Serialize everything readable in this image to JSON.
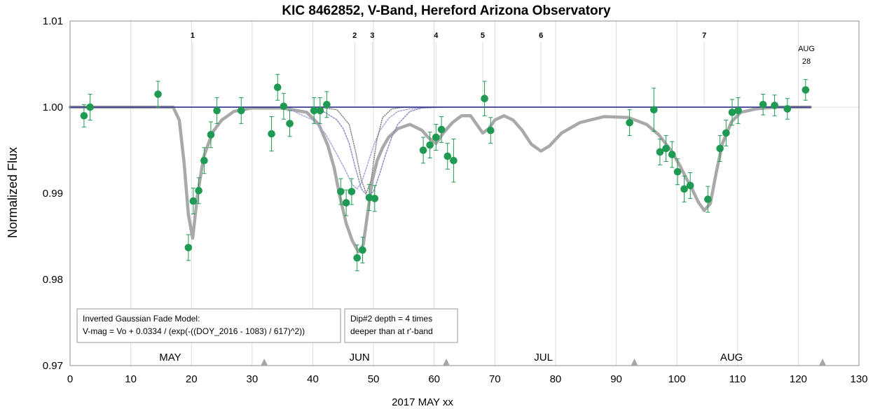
{
  "chart_data": {
    "type": "scatter",
    "title": "KIC 8462852, V-Band, Hereford Arizona Observatory",
    "xlabel": "2017 MAY xx",
    "ylabel": "Normalized  Flux",
    "xlim": [
      0,
      130
    ],
    "ylim": [
      0.97,
      1.01
    ],
    "x_ticks": [
      "0",
      "10",
      "20",
      "30",
      "40",
      "50",
      "60",
      "70",
      "80",
      "90",
      "100",
      "110",
      "120",
      "130"
    ],
    "y_ticks": [
      "0.97",
      "0.98",
      "0.99",
      "1.00",
      "1.01"
    ],
    "grid": "vertical",
    "month_labels": [
      {
        "text": "MAY",
        "x": 16.5
      },
      {
        "text": "JUN",
        "x": 47.7
      },
      {
        "text": "JUL",
        "x": 78.0
      },
      {
        "text": "AUG",
        "x": 109.0
      }
    ],
    "month_markers": [
      32,
      62,
      93,
      124
    ],
    "dip_labels": [
      {
        "text": "1",
        "x": 20.2
      },
      {
        "text": "2",
        "x": 46.9
      },
      {
        "text": "3",
        "x": 49.8
      },
      {
        "text": "4",
        "x": 60.3
      },
      {
        "text": "5",
        "x": 68.0
      },
      {
        "text": "6",
        "x": 77.6
      },
      {
        "text": "7",
        "x": 104.5
      }
    ],
    "aug_label": [
      "AUG",
      "28"
    ],
    "aug_label_x": 121.0,
    "annotations": [
      [
        "Inverted Gaussian Fade Model:",
        "V-mag = Vo + 0.0334  / (exp(-((DOY_2016 - 1083)  / 617)^2))"
      ],
      [
        "Dip#2 depth = 4 times",
        "deeper than at r'-band"
      ]
    ],
    "series": [
      {
        "points": [
          {
            "x": 2.3,
            "y": 0.999,
            "err": 0.0013
          },
          {
            "x": 3.3,
            "y": 1.0,
            "err": 0.0015
          },
          {
            "x": 14.5,
            "y": 1.0015,
            "err": 0.0015
          },
          {
            "x": 19.5,
            "y": 0.9837,
            "err": 0.0015
          },
          {
            "x": 20.3,
            "y": 0.9891,
            "err": 0.0015
          },
          {
            "x": 21.2,
            "y": 0.9903,
            "err": 0.0015
          },
          {
            "x": 22.1,
            "y": 0.9938,
            "err": 0.0015
          },
          {
            "x": 23.2,
            "y": 0.9968,
            "err": 0.0015
          },
          {
            "x": 24.2,
            "y": 0.9996,
            "err": 0.0015
          },
          {
            "x": 28.2,
            "y": 0.9996,
            "err": 0.0015
          },
          {
            "x": 33.2,
            "y": 0.9969,
            "err": 0.002
          },
          {
            "x": 34.2,
            "y": 1.0023,
            "err": 0.0015
          },
          {
            "x": 35.2,
            "y": 1.0001,
            "err": 0.0015
          },
          {
            "x": 36.2,
            "y": 0.9981,
            "err": 0.0015
          },
          {
            "x": 40.2,
            "y": 0.9996,
            "err": 0.0015
          },
          {
            "x": 41.2,
            "y": 0.9996,
            "err": 0.0015
          },
          {
            "x": 42.3,
            "y": 1.0003,
            "err": 0.0015
          },
          {
            "x": 44.6,
            "y": 0.9902,
            "err": 0.0015
          },
          {
            "x": 45.5,
            "y": 0.9889,
            "err": 0.0015
          },
          {
            "x": 46.4,
            "y": 0.9902,
            "err": 0.0015
          },
          {
            "x": 47.3,
            "y": 0.9825,
            "err": 0.0015
          },
          {
            "x": 48.2,
            "y": 0.9834,
            "err": 0.0015
          },
          {
            "x": 49.3,
            "y": 0.9895,
            "err": 0.0015
          },
          {
            "x": 50.2,
            "y": 0.9894,
            "err": 0.0015
          },
          {
            "x": 58.2,
            "y": 0.995,
            "err": 0.0015
          },
          {
            "x": 59.3,
            "y": 0.9956,
            "err": 0.0015
          },
          {
            "x": 60.3,
            "y": 0.9965,
            "err": 0.0015
          },
          {
            "x": 61.2,
            "y": 0.9974,
            "err": 0.0015
          },
          {
            "x": 62.2,
            "y": 0.9943,
            "err": 0.0015
          },
          {
            "x": 63.2,
            "y": 0.9938,
            "err": 0.0025
          },
          {
            "x": 68.3,
            "y": 1.001,
            "err": 0.002
          },
          {
            "x": 69.3,
            "y": 0.9973,
            "err": 0.0015
          },
          {
            "x": 92.2,
            "y": 0.9982,
            "err": 0.0015
          },
          {
            "x": 96.2,
            "y": 0.9997,
            "err": 0.0025
          },
          {
            "x": 97.2,
            "y": 0.9948,
            "err": 0.0015
          },
          {
            "x": 98.2,
            "y": 0.9952,
            "err": 0.0015
          },
          {
            "x": 99.2,
            "y": 0.9945,
            "err": 0.0015
          },
          {
            "x": 100.1,
            "y": 0.9925,
            "err": 0.0015
          },
          {
            "x": 101.2,
            "y": 0.9905,
            "err": 0.0015
          },
          {
            "x": 102.2,
            "y": 0.9909,
            "err": 0.0015
          },
          {
            "x": 105.1,
            "y": 0.9893,
            "err": 0.0015
          },
          {
            "x": 107.1,
            "y": 0.9952,
            "err": 0.0015
          },
          {
            "x": 108.1,
            "y": 0.997,
            "err": 0.0015
          },
          {
            "x": 109.1,
            "y": 0.9994,
            "err": 0.0015
          },
          {
            "x": 110.1,
            "y": 0.9996,
            "err": 0.0015
          },
          {
            "x": 114.2,
            "y": 1.0003,
            "err": 0.0012
          },
          {
            "x": 116.1,
            "y": 1.0002,
            "err": 0.0012
          },
          {
            "x": 118.2,
            "y": 0.9998,
            "err": 0.0012
          },
          {
            "x": 121.2,
            "y": 1.002,
            "err": 0.0012
          }
        ],
        "color": "#1f9a52"
      },
      {
        "type": "line",
        "color": "#a9a9a9",
        "x": [
          0,
          17,
          18,
          18.8,
          19.5,
          20.2,
          21,
          22,
          23.5,
          25,
          27,
          30,
          35,
          39,
          41,
          42.5,
          43.5,
          44.5,
          45.5,
          46.5,
          47.5,
          48.3,
          49,
          49.8,
          50.6,
          51.5,
          52.5,
          54,
          56,
          58,
          59,
          60.3,
          61.5,
          63,
          64.5,
          66,
          67,
          68,
          69,
          70,
          71.5,
          73,
          74.5,
          76,
          77.6,
          79,
          81,
          84,
          88,
          92,
          95,
          97,
          99,
          100.5,
          101.5,
          102.5,
          103.5,
          104.5,
          105.5,
          106.5,
          107.5,
          109,
          110.5,
          113,
          116,
          119,
          122
        ],
        "y": [
          1.0,
          1.0,
          0.9985,
          0.9935,
          0.9875,
          0.9848,
          0.9898,
          0.9942,
          0.9971,
          0.9985,
          0.9995,
          0.9999,
          0.9999,
          0.9994,
          0.998,
          0.9955,
          0.993,
          0.9895,
          0.9865,
          0.9845,
          0.9832,
          0.984,
          0.9875,
          0.9915,
          0.9938,
          0.9953,
          0.9965,
          0.9975,
          0.998,
          0.9973,
          0.9965,
          0.9958,
          0.997,
          0.9982,
          0.999,
          0.999,
          0.998,
          0.997,
          0.9975,
          0.9985,
          0.999,
          0.9985,
          0.9973,
          0.9957,
          0.9949,
          0.9955,
          0.997,
          0.9982,
          0.9989,
          0.9988,
          0.998,
          0.9968,
          0.995,
          0.9932,
          0.9918,
          0.9905,
          0.989,
          0.988,
          0.9888,
          0.9925,
          0.9958,
          0.9983,
          0.9994,
          0.9998,
          1.0,
          1.0,
          1.0
        ]
      },
      {
        "type": "line",
        "color": "#a6a6d8",
        "dash": "2,2",
        "x": [
          36,
          40,
          42,
          44,
          45.5,
          46.5,
          47.3,
          48,
          49,
          50,
          51,
          52.5,
          54,
          56,
          58,
          60
        ],
        "y": [
          0.9998,
          0.9985,
          0.997,
          0.9945,
          0.9925,
          0.991,
          0.9905,
          0.9912,
          0.9933,
          0.9955,
          0.9972,
          0.9987,
          0.9995,
          0.9998,
          0.9999,
          1.0
        ]
      },
      {
        "type": "line",
        "color": "#8a8fc2",
        "dash": "2,2",
        "x": [
          40,
          42,
          44,
          45,
          46,
          47,
          48,
          49,
          50,
          51,
          52,
          53,
          54,
          56,
          58,
          62
        ],
        "y": [
          0.9998,
          0.9994,
          0.9985,
          0.9975,
          0.9958,
          0.993,
          0.9905,
          0.9897,
          0.9902,
          0.9922,
          0.9945,
          0.9965,
          0.998,
          0.9995,
          0.9999,
          1.0
        ]
      },
      {
        "type": "line",
        "color": "#808080",
        "dash": "1,2",
        "x": [
          41,
          44,
          46,
          47,
          48,
          48.8,
          49.6,
          50.5,
          51.5,
          53,
          55,
          58
        ],
        "y": [
          1.0,
          0.9997,
          0.998,
          0.995,
          0.9915,
          0.99,
          0.9915,
          0.996,
          0.9988,
          0.9998,
          1.0,
          1.0
        ]
      },
      {
        "type": "line",
        "color": "#3b3b8f",
        "x": [
          0,
          122
        ],
        "y": [
          1.0,
          1.0
        ]
      }
    ]
  }
}
